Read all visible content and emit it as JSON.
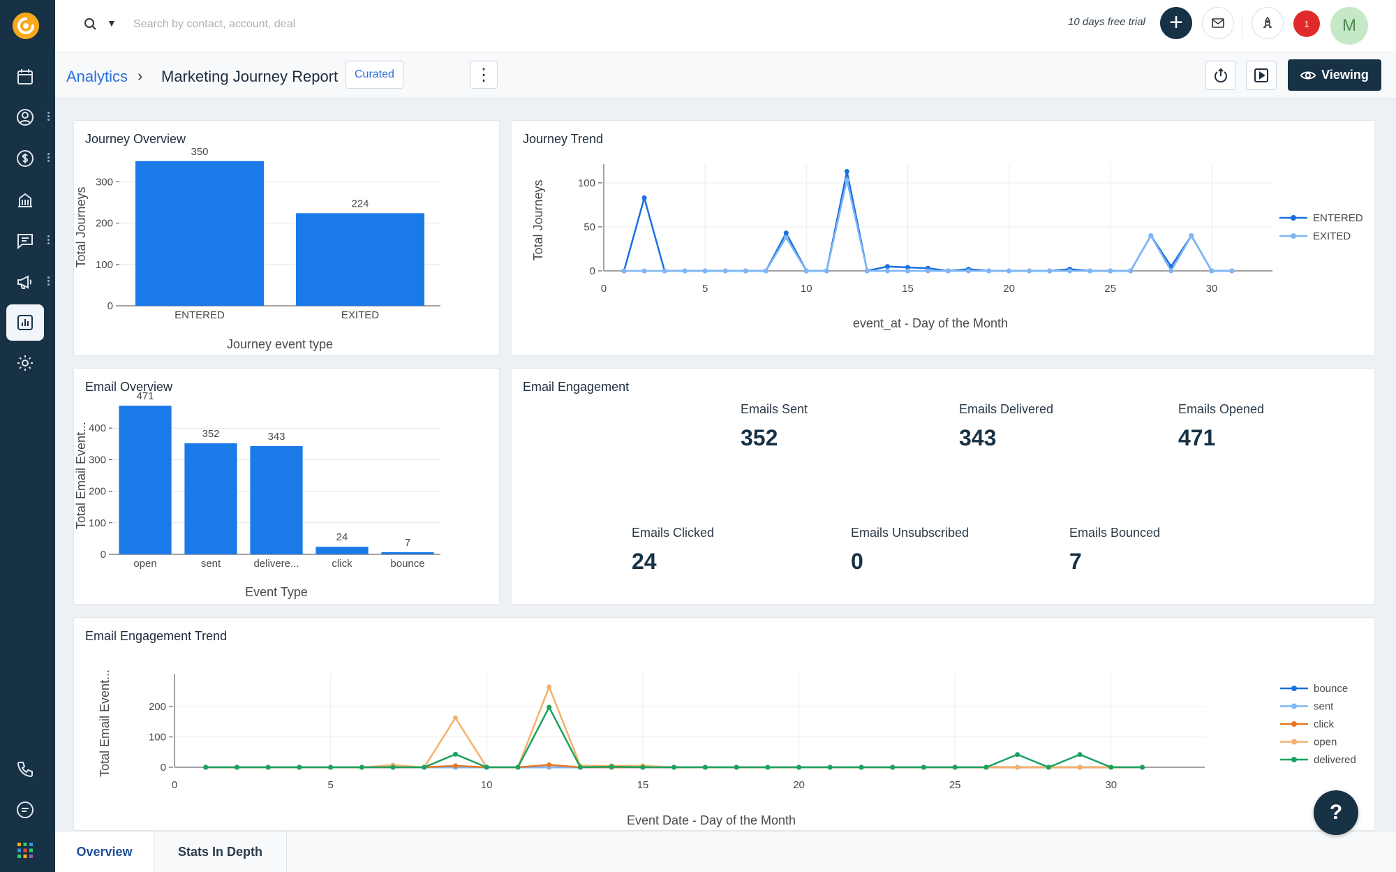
{
  "search": {
    "placeholder": "Search by contact, account, deal"
  },
  "topbar": {
    "trial_text": "10 days free trial",
    "notification_count": "1",
    "avatar_initial": "M"
  },
  "breadcrumb": {
    "root": "Analytics",
    "separator": "›",
    "title": "Marketing Journey Report",
    "badge": "Curated"
  },
  "actions": {
    "viewing_label": "Viewing"
  },
  "colors": {
    "sidebar": "#173145",
    "bar": "#1a7ae8",
    "series_dark_blue": "#1a6fe0",
    "series_light_blue": "#7fb6f5",
    "series_orange": "#e87722",
    "series_light_orange": "#f5b06b",
    "series_green": "#1aa260"
  },
  "cards": {
    "journey_overview": {
      "title": "Journey Overview"
    },
    "journey_trend": {
      "title": "Journey Trend"
    },
    "email_overview": {
      "title": "Email Overview"
    },
    "email_engagement": {
      "title": "Email Engagement",
      "kpis": [
        {
          "label": "Emails Sent",
          "value": "352"
        },
        {
          "label": "Emails Delivered",
          "value": "343"
        },
        {
          "label": "Emails Opened",
          "value": "471"
        },
        {
          "label": "Emails Clicked",
          "value": "24"
        },
        {
          "label": "Emails Unsubscribed",
          "value": "0"
        },
        {
          "label": "Emails Bounced",
          "value": "7"
        }
      ]
    },
    "email_trend": {
      "title": "Email Engagement Trend"
    }
  },
  "chart_data": [
    {
      "id": "journey_overview",
      "type": "bar",
      "categories": [
        "ENTERED",
        "EXITED"
      ],
      "values": [
        350,
        224
      ],
      "xlabel": "Journey event type",
      "ylabel": "Total Journeys",
      "ylim": [
        0,
        380
      ],
      "yticks": [
        0,
        100,
        200,
        300
      ]
    },
    {
      "id": "journey_trend",
      "type": "line",
      "xlabel": "event_at - Day of the Month",
      "ylabel": "Total Journeys",
      "xlim": [
        0,
        33
      ],
      "ylim": [
        0,
        115
      ],
      "xticks": [
        0,
        5,
        10,
        15,
        20,
        25,
        30
      ],
      "yticks": [
        0,
        50,
        100
      ],
      "x": [
        1,
        2,
        3,
        4,
        5,
        6,
        7,
        8,
        9,
        10,
        11,
        12,
        13,
        14,
        15,
        16,
        17,
        18,
        19,
        20,
        21,
        22,
        23,
        24,
        25,
        26,
        27,
        28,
        29,
        30,
        31
      ],
      "series": [
        {
          "name": "ENTERED",
          "color": "#1a6fe0",
          "values": [
            0,
            83,
            0,
            0,
            0,
            0,
            0,
            0,
            43,
            0,
            0,
            113,
            0,
            5,
            4,
            3,
            0,
            2,
            0,
            0,
            0,
            0,
            2,
            0,
            0,
            0,
            40,
            5,
            40,
            0,
            0
          ]
        },
        {
          "name": "EXITED",
          "color": "#7fb6f5",
          "values": [
            0,
            0,
            0,
            0,
            0,
            0,
            0,
            0,
            38,
            0,
            0,
            103,
            0,
            0,
            0,
            0,
            0,
            0,
            0,
            0,
            0,
            0,
            0,
            0,
            0,
            0,
            40,
            0,
            40,
            0,
            0
          ]
        }
      ],
      "legend": "right"
    },
    {
      "id": "email_overview",
      "type": "bar",
      "categories": [
        "open",
        "sent",
        "delivere...",
        "click",
        "bounce"
      ],
      "values": [
        471,
        352,
        343,
        24,
        7
      ],
      "xlabel": "Event Type",
      "ylabel": "Total Email Event...",
      "ylim": [
        0,
        500
      ],
      "yticks": [
        0,
        100,
        200,
        300,
        400
      ]
    },
    {
      "id": "email_trend",
      "type": "line",
      "xlabel": "Event Date - Day of the Month",
      "ylabel": "Total Email Event...",
      "xlim": [
        0,
        33
      ],
      "ylim": [
        0,
        290
      ],
      "xticks": [
        0,
        5,
        10,
        15,
        20,
        25,
        30
      ],
      "yticks": [
        0,
        100,
        200
      ],
      "x": [
        1,
        2,
        3,
        4,
        5,
        6,
        7,
        8,
        9,
        10,
        11,
        12,
        13,
        14,
        15,
        16,
        17,
        18,
        19,
        20,
        21,
        22,
        23,
        24,
        25,
        26,
        27,
        28,
        29,
        30,
        31
      ],
      "series": [
        {
          "name": "bounce",
          "color": "#1a6fe0",
          "values": [
            0,
            0,
            0,
            0,
            0,
            0,
            0,
            0,
            0,
            0,
            0,
            0,
            0,
            0,
            0,
            0,
            0,
            0,
            0,
            0,
            0,
            0,
            0,
            0,
            0,
            0,
            0,
            0,
            0,
            0,
            0
          ]
        },
        {
          "name": "sent",
          "color": "#7fb6f5",
          "values": [
            0,
            0,
            0,
            0,
            0,
            0,
            0,
            0,
            0,
            0,
            0,
            0,
            0,
            0,
            0,
            0,
            0,
            0,
            0,
            0,
            0,
            0,
            0,
            0,
            0,
            0,
            0,
            0,
            0,
            0,
            0
          ]
        },
        {
          "name": "click",
          "color": "#e87722",
          "values": [
            0,
            0,
            0,
            0,
            0,
            0,
            0,
            0,
            5,
            0,
            0,
            8,
            0,
            0,
            0,
            0,
            0,
            0,
            0,
            0,
            0,
            0,
            0,
            0,
            0,
            0,
            0,
            0,
            0,
            0,
            0
          ]
        },
        {
          "name": "open",
          "color": "#f5b06b",
          "values": [
            0,
            0,
            0,
            0,
            0,
            0,
            7,
            0,
            163,
            0,
            0,
            265,
            5,
            5,
            5,
            0,
            0,
            0,
            0,
            0,
            0,
            0,
            0,
            0,
            0,
            0,
            0,
            0,
            0,
            0,
            0
          ]
        },
        {
          "name": "delivered",
          "color": "#1aa260",
          "values": [
            0,
            0,
            0,
            0,
            0,
            0,
            0,
            0,
            43,
            0,
            0,
            198,
            0,
            2,
            0,
            0,
            0,
            0,
            0,
            0,
            0,
            0,
            0,
            0,
            0,
            0,
            42,
            0,
            42,
            0,
            0
          ]
        }
      ],
      "legend": "right"
    }
  ],
  "tabs": [
    {
      "label": "Overview",
      "active": true
    },
    {
      "label": "Stats In Depth",
      "active": false
    }
  ],
  "help": {
    "label": "?"
  }
}
